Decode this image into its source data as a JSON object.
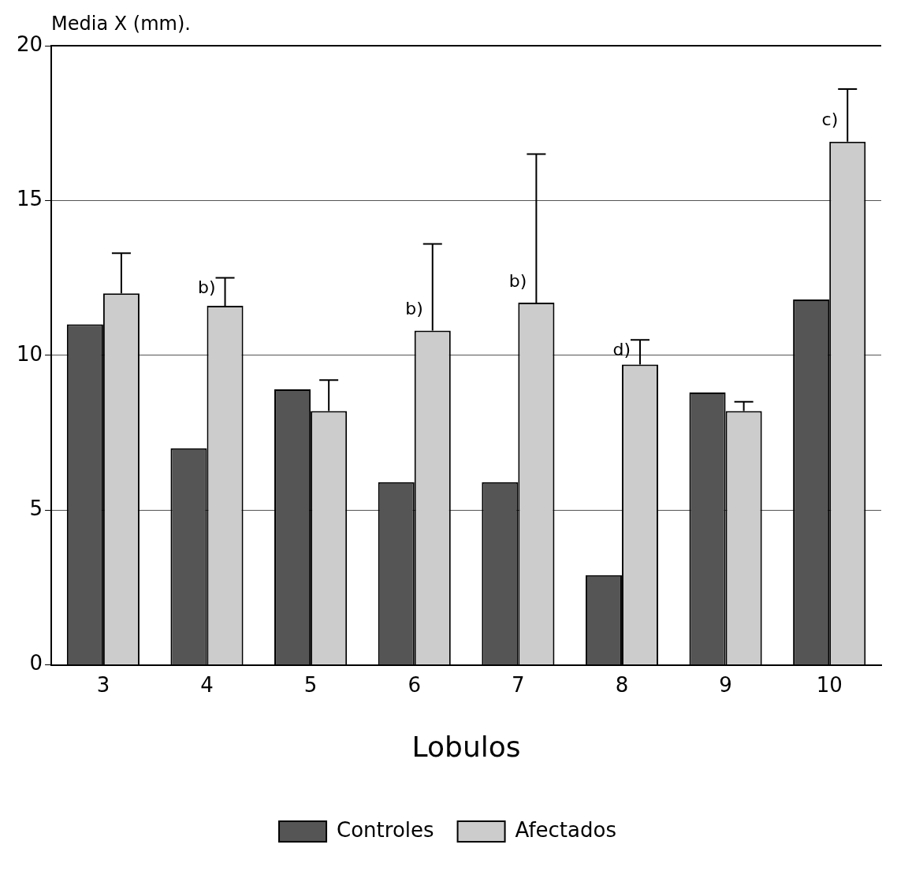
{
  "chart_data": {
    "type": "bar",
    "ylabel": "Media X (mm).",
    "xlabel": "Lobulos",
    "categories": [
      "3",
      "4",
      "5",
      "6",
      "7",
      "8",
      "9",
      "10"
    ],
    "series": [
      {
        "name": "Controles",
        "color": "#555555",
        "values": [
          11.0,
          7.0,
          8.9,
          5.9,
          5.9,
          2.9,
          8.8,
          11.8
        ]
      },
      {
        "name": "Afectados",
        "color": "#cccccc",
        "values": [
          12.0,
          11.6,
          8.2,
          10.8,
          11.7,
          9.7,
          8.2,
          16.9
        ],
        "errors": [
          [
            12.0,
            13.3
          ],
          [
            11.6,
            12.5
          ],
          [
            8.2,
            9.2
          ],
          [
            10.8,
            13.6
          ],
          [
            11.7,
            16.5
          ],
          [
            9.7,
            10.5
          ],
          [
            8.2,
            8.5
          ],
          [
            16.9,
            18.6
          ]
        ],
        "value_labels": [
          null,
          "b)",
          null,
          "b)",
          "b)",
          "d)",
          null,
          "c)"
        ]
      }
    ],
    "ylim": [
      0,
      20
    ],
    "yticks": [
      0,
      5,
      10,
      15,
      20
    ],
    "grid": "y",
    "legend": "bottom"
  }
}
